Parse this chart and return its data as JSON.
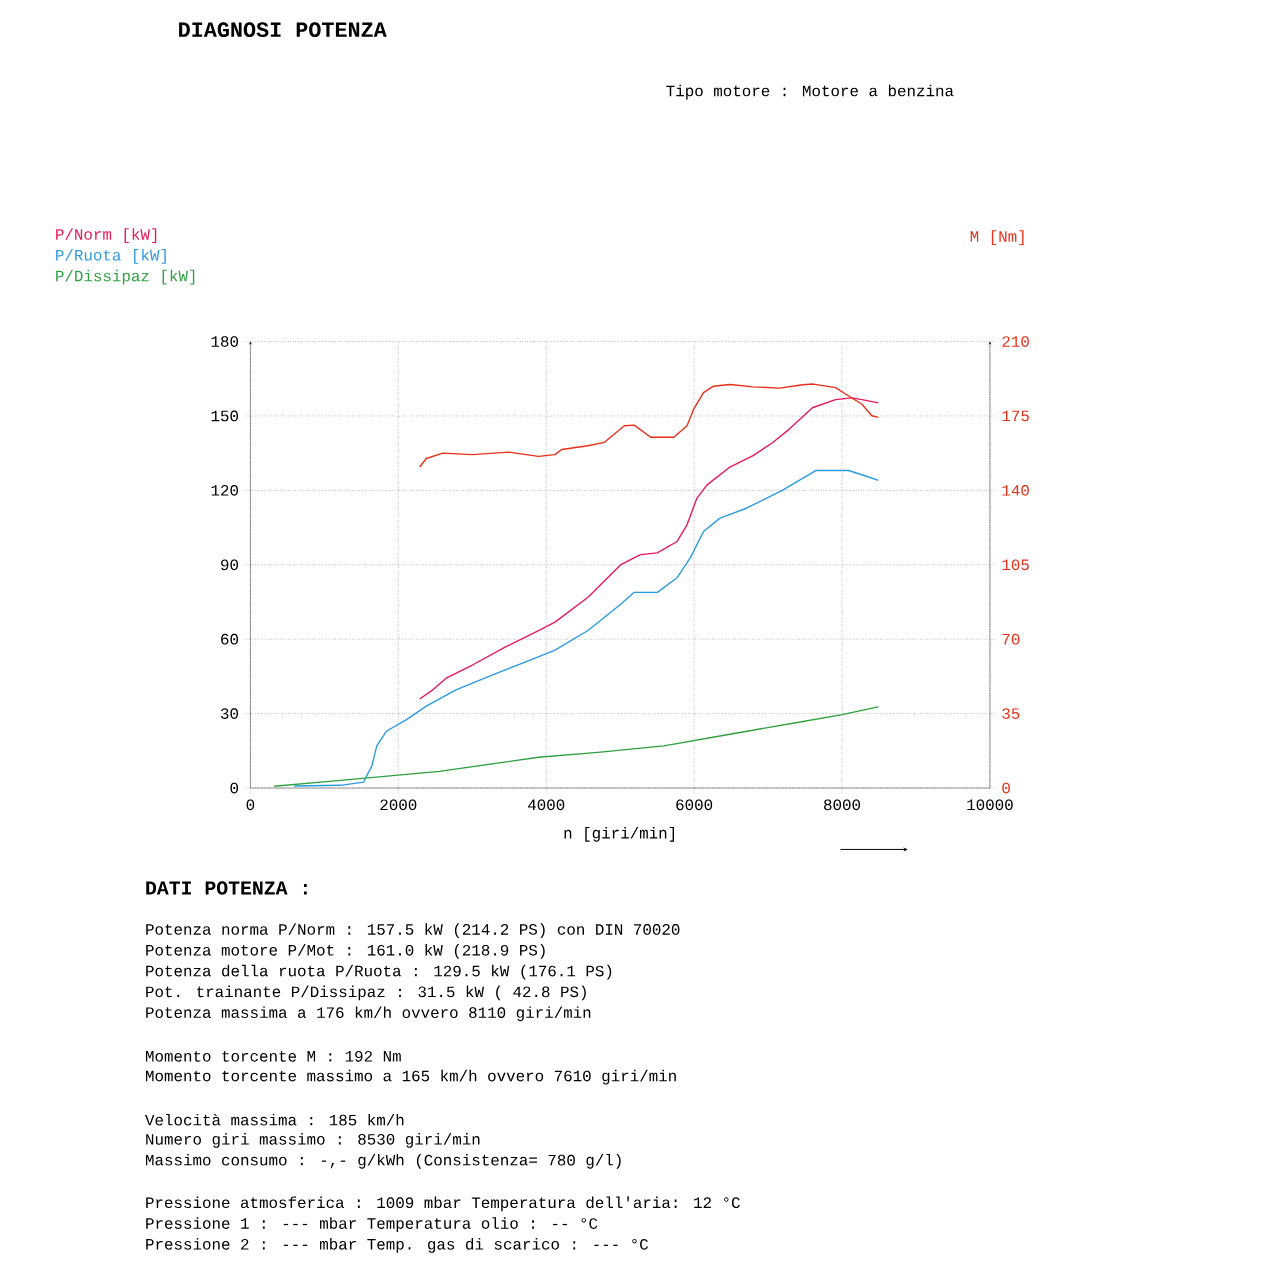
{
  "chart_data": {
    "type": "line",
    "title": "DIAGNOSI POTENZA",
    "xlabel": "n [giri/min]",
    "xlim": [
      0,
      10000
    ],
    "xticks": [
      0,
      2000,
      4000,
      6000,
      8000,
      10000
    ],
    "ylim": [
      0,
      180
    ],
    "yticks": [
      0,
      30,
      60,
      90,
      120,
      150,
      180
    ],
    "y2lim": [
      0,
      210
    ],
    "y2ticks": [
      0,
      35,
      70,
      105,
      140,
      175,
      210
    ],
    "grid": true,
    "legend": "top left",
    "series": [
      {
        "name": "P/Norm [kW]",
        "color": "#e8185a",
        "x": [
          2289,
          2467,
          2646,
          3003,
          3450,
          3896,
          4119,
          4565,
          5011,
          5234,
          5279,
          5502,
          5770,
          5904,
          6037,
          6171,
          6484,
          6797,
          7064,
          7287,
          7600,
          7912,
          8135,
          8269,
          8491
        ],
        "values": [
          35.9,
          39.6,
          44.3,
          49.6,
          56.9,
          63.5,
          66.9,
          76.9,
          90.1,
          93.5,
          94.1,
          94.8,
          99.4,
          106.1,
          116.8,
          122.1,
          129.4,
          134,
          139.3,
          144.7,
          153.3,
          156.6,
          157.3,
          156.6,
          155.3
        ]
      },
      {
        "name": "P/Ruota [kW]",
        "color": "#2a9be0",
        "x": [
          593,
          1218,
          1530,
          1643,
          1709,
          1843,
          2111,
          2379,
          2780,
          3226,
          3672,
          4119,
          4565,
          5011,
          5190,
          5502,
          5770,
          5948,
          6127,
          6350,
          6707,
          7198,
          7644,
          8090,
          8358,
          8491
        ],
        "values": [
          0.8,
          1.1,
          2.4,
          9,
          17,
          23,
          27.6,
          33,
          39.6,
          45,
          50.3,
          55.6,
          63.5,
          74.2,
          78.9,
          78.9,
          84.8,
          92.8,
          103.4,
          108.8,
          112.8,
          120.1,
          128,
          128,
          125.4,
          124
        ]
      },
      {
        "name": "P/Dissipaz [kW]",
        "color": "#2ea040",
        "x": [
          321,
          1218,
          2557,
          3896,
          4699,
          5592,
          6484,
          7376,
          8001,
          8491
        ],
        "values": [
          0.7,
          3.1,
          6.7,
          12.4,
          14.4,
          17,
          21.7,
          26.3,
          29.6,
          32.7
        ]
      },
      {
        "name": "M [Nm]",
        "color": "#e8301a",
        "axis": "y2",
        "x": [
          2289,
          2379,
          2601,
          3003,
          3494,
          3896,
          4119,
          4208,
          4565,
          4788,
          5056,
          5190,
          5413,
          5726,
          5904,
          5994,
          6127,
          6261,
          6484,
          6797,
          7153,
          7466,
          7610,
          7912,
          8090,
          8269,
          8403,
          8491
        ],
        "values": [
          151,
          155,
          157.5,
          156.8,
          158,
          156,
          156.8,
          159.2,
          161,
          162.6,
          170.4,
          170.7,
          165,
          165,
          170.4,
          178.2,
          186,
          189,
          189.8,
          188.7,
          188.1,
          189.7,
          190,
          188.3,
          184.4,
          180.5,
          175.1,
          174.3
        ]
      }
    ],
    "annotations": [
      "Tipo motore : Motore a benzina",
      "DATI POTENZA :",
      "Potenza norma P/Norm : 157.5 kW (214.2 PS) con DIN 70020",
      "Potenza motore P/Mot : 161.0 kW (218.9 PS)",
      "Potenza della ruota P/Ruota : 129.5 kW (176.1 PS)",
      "Pot. trainante P/Dissipaz : 31.5 kW ( 42.8 PS)",
      "Potenza massima a 176 km/h ovvero 8110 giri/min",
      "Momento torcente M : 192 Nm",
      "Momento torcente massimo a 165 km/h ovvero 7610 giri/min",
      "Velocità massima : 185 km/h",
      "Numero giri massimo : 8530 giri/min",
      "Massimo consumo : -,- g/kWh (Consistenza= 780 g/l)",
      "Pressione atmosferica : 1009 mbar Temperatura dell'aria: 12 °C",
      "Pressione 1 : --- mbar Temperatura olio : -- °C",
      "Pressione 2 : --- mbar Temp. gas di scarico : --- °C"
    ]
  }
}
